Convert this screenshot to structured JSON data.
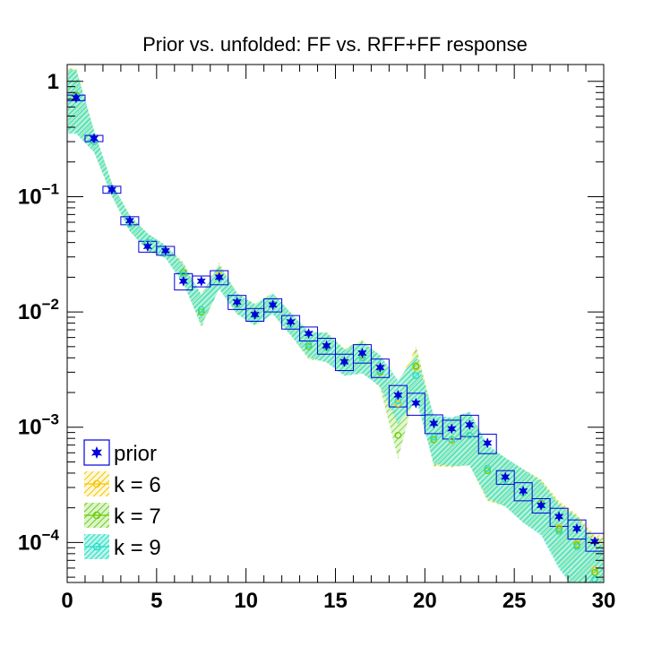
{
  "chart_data": {
    "type": "scatter",
    "title": "Prior vs. unfolded: FF vs. RFF+FF response",
    "xlabel": "",
    "ylabel": "",
    "xlim": [
      0,
      30
    ],
    "ylim": [
      4.5e-05,
      1.4
    ],
    "y_scale": "log",
    "grid": false,
    "legend_position": "bottom-left",
    "x_ticks": [
      {
        "value": 0,
        "label": "0"
      },
      {
        "value": 5,
        "label": "5"
      },
      {
        "value": 10,
        "label": "10"
      },
      {
        "value": 15,
        "label": "15"
      },
      {
        "value": 20,
        "label": "20"
      },
      {
        "value": 25,
        "label": "25"
      },
      {
        "value": 30,
        "label": "30"
      }
    ],
    "y_ticks": [
      {
        "value": 1,
        "base": "1",
        "exp": ""
      },
      {
        "value": 0.1,
        "base": "10",
        "exp": "−1"
      },
      {
        "value": 0.01,
        "base": "10",
        "exp": "−2"
      },
      {
        "value": 0.001,
        "base": "10",
        "exp": "−3"
      },
      {
        "value": 0.0001,
        "base": "10",
        "exp": "−4"
      }
    ],
    "x": [
      0.5,
      1.5,
      2.5,
      3.5,
      4.5,
      5.5,
      6.5,
      7.5,
      8.5,
      9.5,
      10.5,
      11.5,
      12.5,
      13.5,
      14.5,
      15.5,
      16.5,
      17.5,
      18.5,
      19.5,
      20.5,
      21.5,
      22.5,
      23.5,
      24.5,
      25.5,
      26.5,
      27.5,
      28.5,
      29.5
    ],
    "series": [
      {
        "name": "prior",
        "color": "#0000dd",
        "values": [
          0.72,
          0.32,
          0.115,
          0.062,
          0.037,
          0.034,
          0.0185,
          0.0185,
          0.02,
          0.0122,
          0.0095,
          0.0115,
          0.0082,
          0.0065,
          0.0051,
          0.0037,
          0.0044,
          0.0033,
          0.0019,
          0.00162,
          0.00108,
          0.00097,
          0.00105,
          0.00073,
          0.00037,
          0.00028,
          0.00021,
          0.000168,
          0.000132,
          0.000102
        ],
        "err": [
          0.04,
          0.02,
          0.008,
          0.005,
          0.004,
          0.003,
          0.003,
          0.002,
          0.0028,
          0.0017,
          0.0012,
          0.0015,
          0.0011,
          0.0009,
          0.0008,
          0.0006,
          0.0008,
          0.0006,
          0.0004,
          0.00035,
          0.0002,
          0.00018,
          0.00022,
          0.00014,
          5e-05,
          5e-05,
          3e-05,
          3e-05,
          2.5e-05,
          1.8e-05
        ]
      },
      {
        "name": "k = 6",
        "color": "#f5c400",
        "band_color": "#ffd633",
        "values": [
          0.76,
          0.3,
          0.114,
          0.058,
          0.04,
          0.033,
          0.021,
          0.0105,
          0.021,
          0.0118,
          0.0093,
          0.0117,
          0.0078,
          0.0052,
          0.0049,
          0.0036,
          0.004,
          0.0031,
          0.0016,
          0.0033,
          0.00078,
          0.00076,
          0.00085,
          0.00042,
          0.00035,
          0.00027,
          0.00022,
          0.000135,
          9.8e-05,
          5.8e-05
        ],
        "err_rel": [
          0.7,
          0.25,
          0.15,
          0.18,
          0.2,
          0.15,
          0.22,
          0.35,
          0.28,
          0.24,
          0.24,
          0.24,
          0.26,
          0.3,
          0.34,
          0.3,
          0.36,
          0.36,
          0.5,
          0.5,
          0.55,
          0.55,
          0.6,
          0.6,
          0.55,
          0.6,
          0.6,
          0.7,
          0.8,
          1.0
        ]
      },
      {
        "name": "k = 7",
        "color": "#66cc00",
        "band_color": "#66cc33",
        "values": [
          0.76,
          0.3,
          0.114,
          0.058,
          0.04,
          0.033,
          0.022,
          0.01,
          0.02,
          0.0116,
          0.0095,
          0.0117,
          0.0078,
          0.005,
          0.005,
          0.0037,
          0.0042,
          0.003,
          0.00085,
          0.0034,
          0.00078,
          0.00078,
          0.00085,
          0.00042,
          0.00035,
          0.00027,
          0.00022,
          0.00013,
          9.5e-05,
          5.5e-05
        ],
        "err_rel": [
          0.7,
          0.25,
          0.15,
          0.18,
          0.2,
          0.15,
          0.22,
          0.35,
          0.28,
          0.24,
          0.24,
          0.24,
          0.26,
          0.3,
          0.34,
          0.3,
          0.36,
          0.36,
          0.5,
          0.5,
          0.55,
          0.55,
          0.6,
          0.6,
          0.55,
          0.6,
          0.6,
          0.7,
          0.8,
          1.0
        ]
      },
      {
        "name": "k = 9",
        "color": "#22ddcc",
        "band_color": "#33ddcc",
        "values": [
          0.74,
          0.3,
          0.114,
          0.058,
          0.04,
          0.033,
          0.021,
          0.0105,
          0.02,
          0.0117,
          0.0093,
          0.0117,
          0.0078,
          0.0052,
          0.0049,
          0.0036,
          0.004,
          0.0031,
          0.0017,
          0.0028,
          0.00082,
          0.00078,
          0.00085,
          0.00044,
          0.00035,
          0.00027,
          0.00021,
          0.000125,
          9.2e-05,
          4.8e-05
        ],
        "err_rel": [
          0.7,
          0.25,
          0.15,
          0.18,
          0.2,
          0.15,
          0.22,
          0.35,
          0.28,
          0.24,
          0.24,
          0.24,
          0.26,
          0.3,
          0.34,
          0.3,
          0.36,
          0.36,
          0.5,
          0.5,
          0.55,
          0.55,
          0.6,
          0.6,
          0.55,
          0.6,
          0.6,
          0.7,
          0.8,
          1.0
        ]
      }
    ]
  }
}
